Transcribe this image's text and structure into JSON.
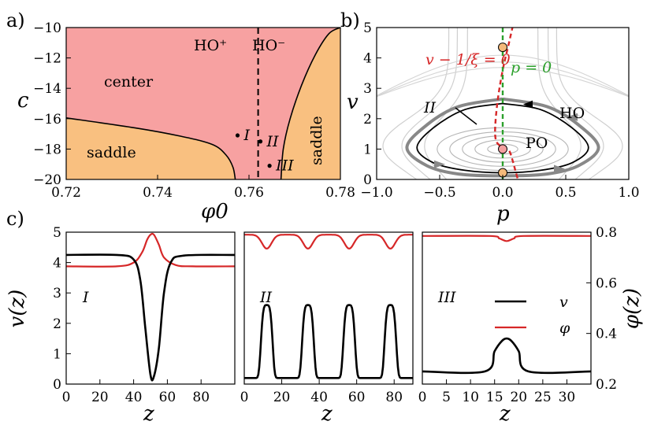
{
  "panel_labels": [
    "a)",
    "b)",
    "c)"
  ],
  "chart_data": [
    {
      "type": "area",
      "panel": "a)",
      "xlabel": "φ0",
      "ylabel": "c",
      "xlim": [
        0.72,
        0.78
      ],
      "ylim": [
        -20,
        -10
      ],
      "xticks": [
        "0.72",
        "0.74",
        "0.76",
        "0.78"
      ],
      "yticks": [
        "−20",
        "−18",
        "−16",
        "−14",
        "−12",
        "−10"
      ],
      "regions": [
        {
          "label": "center",
          "color": "#f7a1a1"
        },
        {
          "label": "saddle",
          "color": "#f9c080"
        },
        {
          "label": "saddle",
          "color": "#f9c080"
        }
      ],
      "boundary_left": {
        "x": [
          0.72,
          0.735,
          0.745,
          0.752,
          0.755,
          0.7565,
          0.757
        ],
        "y": [
          -15.95,
          -16.6,
          -17.15,
          -17.7,
          -18.4,
          -19.2,
          -20
        ]
      },
      "boundary_right": {
        "x": [
          0.767,
          0.7675,
          0.769,
          0.7715,
          0.7745,
          0.7775,
          0.78
        ],
        "y": [
          -20,
          -18.0,
          -16.0,
          -13.8,
          -11.8,
          -10.4,
          -10
        ]
      },
      "vline": {
        "x": 0.762,
        "style": "dashed"
      },
      "vline_labels": [
        "HO⁺",
        "HO⁻"
      ],
      "points": [
        {
          "label": "I",
          "x": 0.7575,
          "y": -17.1
        },
        {
          "label": "II",
          "x": 0.7625,
          "y": -17.5
        },
        {
          "label": "III",
          "x": 0.7645,
          "y": -19.1
        }
      ]
    },
    {
      "type": "line",
      "panel": "b)",
      "xlabel": "p",
      "ylabel": "v",
      "xlim": [
        -1.0,
        1.0
      ],
      "ylim": [
        0,
        5
      ],
      "xticks": [
        "−1.0",
        "−0.5",
        "0.0",
        "0.5",
        "1.0"
      ],
      "yticks": [
        "0",
        "1",
        "2",
        "3",
        "4",
        "5"
      ],
      "annotations": [
        {
          "text": "II"
        },
        {
          "text": "HO"
        },
        {
          "text": "PO"
        },
        {
          "text": "v − 1/ξ = 0",
          "color": "#d62728"
        },
        {
          "text": "p = 0",
          "color": "#2ca02c"
        }
      ],
      "fixed_points": [
        {
          "p": 0,
          "v": 4.35
        },
        {
          "p": 0,
          "v": 1.0
        },
        {
          "p": 0,
          "v": 0.22
        }
      ],
      "orbits": [
        {
          "name": "HO",
          "color": "#000000",
          "p": [
            0,
            0.3,
            0.55,
            0.68,
            0.55,
            0.3,
            0,
            -0.3,
            -0.55,
            -0.68,
            -0.55,
            -0.3,
            0
          ],
          "v": [
            2.5,
            2.3,
            1.7,
            1.05,
            0.55,
            0.3,
            0.22,
            0.3,
            0.55,
            1.05,
            1.7,
            2.3,
            2.5
          ]
        },
        {
          "name": "II",
          "color": "#888888",
          "p": [
            0,
            0.35,
            0.6,
            0.76,
            0.6,
            0.35,
            0,
            -0.35,
            -0.6,
            -0.76,
            -0.6,
            -0.35,
            0
          ],
          "v": [
            2.65,
            2.4,
            1.8,
            1.05,
            0.45,
            0.18,
            0.12,
            0.18,
            0.45,
            1.05,
            1.8,
            2.4,
            2.65
          ]
        }
      ]
    },
    {
      "type": "line",
      "panel": "c) I",
      "label": "I",
      "xlabel": "z",
      "ylabel": "v(z)",
      "xlim": [
        0,
        100
      ],
      "ylim": [
        0,
        5
      ],
      "xticks": [
        "0",
        "20",
        "40",
        "60",
        "80"
      ],
      "yticks": [
        "0",
        "1",
        "2",
        "3",
        "4",
        "5"
      ],
      "series": [
        {
          "name": "v",
          "color": "#000000",
          "x": [
            0,
            30,
            40,
            44,
            47,
            50,
            52,
            55,
            58,
            62,
            70,
            100
          ],
          "y": [
            4.25,
            4.25,
            4.1,
            3.4,
            1.8,
            0.3,
            0.25,
            1.2,
            3.0,
            4.0,
            4.23,
            4.25
          ]
        },
        {
          "name": "φ",
          "color": "#d62728",
          "x": [
            0,
            30,
            40,
            45,
            48,
            50,
            52,
            55,
            58,
            65,
            75,
            100
          ],
          "y": [
            0.665,
            0.665,
            0.68,
            0.72,
            0.77,
            0.79,
            0.79,
            0.75,
            0.7,
            0.67,
            0.665,
            0.665
          ]
        }
      ]
    },
    {
      "type": "line",
      "panel": "c) II",
      "label": "II",
      "xlabel": "z",
      "xlim": [
        0,
        90
      ],
      "ylim": [
        0,
        5
      ],
      "xticks": [
        "0",
        "20",
        "40",
        "60",
        "80"
      ],
      "series": [
        {
          "name": "v",
          "color": "#000000",
          "period": 22,
          "peak_x": 12,
          "peak_y": 2.6,
          "base_y": 0.2
        },
        {
          "name": "φ",
          "color": "#d62728",
          "period": 22,
          "peak_x": 12,
          "top_y": 0.79,
          "dip_y": 0.735
        }
      ]
    },
    {
      "type": "line",
      "panel": "c) III",
      "label": "III",
      "xlabel": "z",
      "ylabel": "φ(z)",
      "xlim": [
        0,
        35
      ],
      "ylim": [
        0.2,
        0.8
      ],
      "xticks": [
        "0",
        "5",
        "10",
        "15",
        "20",
        "25",
        "30"
      ],
      "yticks": [
        "0.2",
        "0.4",
        "0.6",
        "0.8"
      ],
      "legend": [
        {
          "name": "v",
          "color": "#000000"
        },
        {
          "name": "φ",
          "color": "#d62728"
        }
      ],
      "series": [
        {
          "name": "v",
          "color": "#000000",
          "x": [
            0,
            13,
            15,
            16.5,
            17.5,
            18.5,
            20,
            22,
            35
          ],
          "y": [
            0.25,
            0.25,
            0.33,
            0.37,
            0.38,
            0.37,
            0.33,
            0.25,
            0.25
          ]
        },
        {
          "name": "φ",
          "color": "#d62728",
          "x": [
            0,
            14,
            16,
            17.5,
            19,
            21,
            35
          ],
          "y": [
            0.785,
            0.785,
            0.775,
            0.765,
            0.775,
            0.785,
            0.785
          ]
        }
      ]
    }
  ]
}
